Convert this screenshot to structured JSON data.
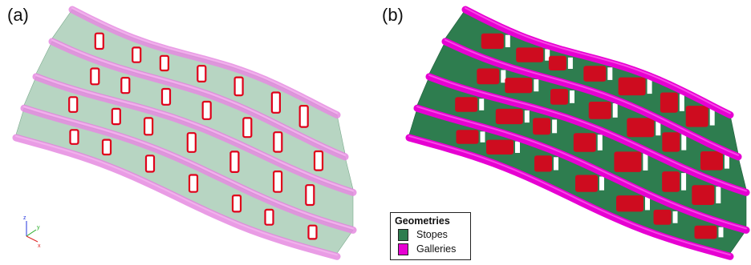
{
  "panels": [
    {
      "label": "(a)"
    },
    {
      "label": "(b)"
    }
  ],
  "axes_triad": {
    "z": "z",
    "y": "y",
    "x": "x"
  },
  "legend": {
    "title": "Geometries",
    "items": [
      {
        "label": "Stopes",
        "color": "#2e7d4f"
      },
      {
        "label": "Galleries",
        "color": "#e600d2"
      }
    ]
  },
  "colors": {
    "stope_translucent": "#9fc7ae",
    "gallery_translucent": "#e58be0",
    "stope_solid": "#2e7d4f",
    "gallery_solid": "#e600d2",
    "overbreak": "#e0001a"
  }
}
